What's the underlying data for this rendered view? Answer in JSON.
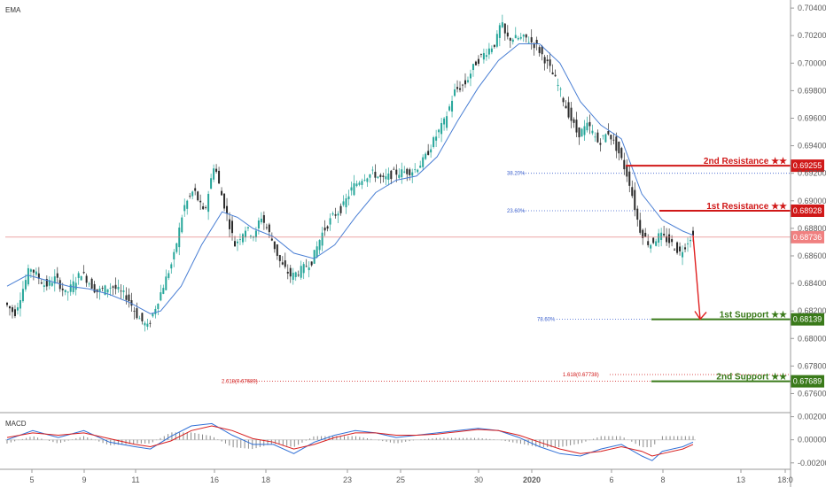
{
  "chart_data": [
    {
      "type": "candlestick",
      "panel_label": "EMA",
      "y_ticks": [
        "0.70400",
        "0.70200",
        "0.70000",
        "0.69800",
        "0.69600",
        "0.69400",
        "0.69200",
        "0.69000",
        "0.68800",
        "0.68600",
        "0.68400",
        "0.68200",
        "0.68000",
        "0.67800",
        "0.67600"
      ],
      "x_ticks": [
        "5",
        "9",
        "11",
        "16",
        "18",
        "23",
        "25",
        "30",
        "2020",
        "6",
        "8",
        "13",
        "18:0"
      ],
      "ylim": [
        0.675,
        0.7042
      ],
      "current_price": 0.68736,
      "price_path": [
        [
          0,
          0.6826
        ],
        [
          2,
          0.6818
        ],
        [
          5,
          0.6852
        ],
        [
          8,
          0.6838
        ],
        [
          10,
          0.6844
        ],
        [
          12,
          0.6832
        ],
        [
          15,
          0.6848
        ],
        [
          18,
          0.6834
        ],
        [
          21,
          0.6838
        ],
        [
          24,
          0.683
        ],
        [
          26,
          0.6816
        ],
        [
          28,
          0.6808
        ],
        [
          30,
          0.6828
        ],
        [
          33,
          0.6858
        ],
        [
          35,
          0.6895
        ],
        [
          37,
          0.6908
        ],
        [
          39,
          0.689
        ],
        [
          41,
          0.6928
        ],
        [
          42,
          0.691
        ],
        [
          45,
          0.6868
        ],
        [
          47,
          0.688
        ],
        [
          49,
          0.6874
        ],
        [
          50,
          0.689
        ],
        [
          52,
          0.6874
        ],
        [
          54,
          0.6854
        ],
        [
          56,
          0.6845
        ],
        [
          58,
          0.685
        ],
        [
          60,
          0.6856
        ],
        [
          62,
          0.6876
        ],
        [
          64,
          0.6888
        ],
        [
          66,
          0.6895
        ],
        [
          68,
          0.691
        ],
        [
          70,
          0.6917
        ],
        [
          72,
          0.692
        ],
        [
          74,
          0.6915
        ],
        [
          76,
          0.692
        ],
        [
          80,
          0.6922
        ],
        [
          82,
          0.693
        ],
        [
          84,
          0.6945
        ],
        [
          86,
          0.6958
        ],
        [
          88,
          0.698
        ],
        [
          90,
          0.6985
        ],
        [
          92,
          0.7
        ],
        [
          94,
          0.7008
        ],
        [
          96,
          0.7015
        ],
        [
          97,
          0.703
        ],
        [
          98,
          0.7018
        ],
        [
          102,
          0.7018
        ],
        [
          104,
          0.7012
        ],
        [
          106,
          0.7
        ],
        [
          108,
          0.6985
        ],
        [
          110,
          0.6965
        ],
        [
          112,
          0.6948
        ],
        [
          114,
          0.6955
        ],
        [
          116,
          0.6942
        ],
        [
          118,
          0.695
        ],
        [
          120,
          0.6935
        ],
        [
          122,
          0.6915
        ],
        [
          124,
          0.688
        ],
        [
          126,
          0.6868
        ],
        [
          128,
          0.6875
        ],
        [
          130,
          0.687
        ],
        [
          132,
          0.6862
        ],
        [
          134,
          0.6874
        ]
      ],
      "ema_path": [
        [
          0,
          0.6838
        ],
        [
          4,
          0.6846
        ],
        [
          8,
          0.6842
        ],
        [
          12,
          0.6838
        ],
        [
          16,
          0.6836
        ],
        [
          20,
          0.6832
        ],
        [
          24,
          0.6826
        ],
        [
          28,
          0.6818
        ],
        [
          30,
          0.682
        ],
        [
          34,
          0.6838
        ],
        [
          38,
          0.6868
        ],
        [
          42,
          0.6892
        ],
        [
          45,
          0.6888
        ],
        [
          48,
          0.688
        ],
        [
          52,
          0.6874
        ],
        [
          56,
          0.6862
        ],
        [
          60,
          0.6858
        ],
        [
          64,
          0.6868
        ],
        [
          68,
          0.6888
        ],
        [
          72,
          0.6906
        ],
        [
          76,
          0.6915
        ],
        [
          80,
          0.6918
        ],
        [
          84,
          0.6932
        ],
        [
          88,
          0.6958
        ],
        [
          92,
          0.6982
        ],
        [
          96,
          0.7002
        ],
        [
          100,
          0.7014
        ],
        [
          104,
          0.7014
        ],
        [
          108,
          0.7
        ],
        [
          112,
          0.6972
        ],
        [
          116,
          0.6955
        ],
        [
          120,
          0.6945
        ],
        [
          124,
          0.6905
        ],
        [
          128,
          0.6886
        ],
        [
          132,
          0.6878
        ],
        [
          134,
          0.6875
        ]
      ],
      "levels": [
        {
          "label": "2nd Resistance ★★",
          "value": 0.69255,
          "tag": "0.69255",
          "color": "#d01818"
        },
        {
          "label": "1st Resistance ★★",
          "value": 0.68928,
          "tag": "0.68928",
          "color": "#d01818"
        },
        {
          "label": "1st Support ★★",
          "value": 0.68139,
          "tag": "0.68139",
          "color": "#3a7a1a"
        },
        {
          "label": "2nd Support ★★",
          "value": 0.67689,
          "tag": "0.67689",
          "color": "#3a7a1a"
        }
      ],
      "fib_levels": [
        {
          "label": "38.20%",
          "value": 0.692,
          "color": "#3a5fcd"
        },
        {
          "label": "23.60%",
          "value": 0.68928,
          "color": "#3a5fcd"
        },
        {
          "label": "78.60%",
          "value": 0.68139,
          "color": "#3a5fcd"
        },
        {
          "label": "1.618(0.67738)",
          "value": 0.67738,
          "color": "#d01818"
        },
        {
          "label": "2.618(0.67689)",
          "value": 0.67689,
          "color": "#d01818"
        }
      ],
      "projection": {
        "from": [
          134,
          0.6875
        ],
        "to": [
          136,
          0.6814
        ]
      }
    },
    {
      "type": "line",
      "panel_label": "MACD",
      "y_ticks": [
        "0.00200",
        "0.00000",
        "-0.00200"
      ],
      "ylim": [
        -0.0024,
        0.0022
      ],
      "macd": [
        [
          0,
          0.0
        ],
        [
          5,
          0.0008
        ],
        [
          10,
          0.0002
        ],
        [
          15,
          0.0008
        ],
        [
          20,
          -0.0002
        ],
        [
          25,
          -0.0006
        ],
        [
          28,
          -0.0008
        ],
        [
          32,
          0.0003
        ],
        [
          36,
          0.0012
        ],
        [
          40,
          0.0014
        ],
        [
          44,
          0.0004
        ],
        [
          48,
          -0.0004
        ],
        [
          52,
          -0.0004
        ],
        [
          56,
          -0.0012
        ],
        [
          60,
          -0.0002
        ],
        [
          64,
          0.0004
        ],
        [
          68,
          0.0008
        ],
        [
          72,
          0.0006
        ],
        [
          76,
          0.0002
        ],
        [
          80,
          0.0004
        ],
        [
          84,
          0.0006
        ],
        [
          88,
          0.0008
        ],
        [
          92,
          0.001
        ],
        [
          96,
          0.0008
        ],
        [
          100,
          0.0002
        ],
        [
          104,
          -0.0006
        ],
        [
          108,
          -0.0012
        ],
        [
          112,
          -0.0014
        ],
        [
          116,
          -0.0008
        ],
        [
          120,
          -0.0004
        ],
        [
          124,
          -0.0014
        ],
        [
          126,
          -0.0018
        ],
        [
          128,
          -0.001
        ],
        [
          132,
          -0.0006
        ],
        [
          134,
          -0.0002
        ]
      ],
      "signal": [
        [
          0,
          0.0002
        ],
        [
          5,
          0.0006
        ],
        [
          10,
          0.0004
        ],
        [
          15,
          0.0006
        ],
        [
          20,
          0.0001
        ],
        [
          25,
          -0.0004
        ],
        [
          28,
          -0.0006
        ],
        [
          32,
          -0.0001
        ],
        [
          36,
          0.0008
        ],
        [
          40,
          0.0012
        ],
        [
          44,
          0.0008
        ],
        [
          48,
          0.0001
        ],
        [
          52,
          -0.0002
        ],
        [
          56,
          -0.0008
        ],
        [
          60,
          -0.0004
        ],
        [
          64,
          0.0002
        ],
        [
          68,
          0.0006
        ],
        [
          72,
          0.0006
        ],
        [
          76,
          0.0004
        ],
        [
          80,
          0.0004
        ],
        [
          84,
          0.0005
        ],
        [
          88,
          0.0007
        ],
        [
          92,
          0.0009
        ],
        [
          96,
          0.0008
        ],
        [
          100,
          0.0004
        ],
        [
          104,
          -0.0002
        ],
        [
          108,
          -0.0008
        ],
        [
          112,
          -0.0012
        ],
        [
          116,
          -0.001
        ],
        [
          120,
          -0.0006
        ],
        [
          124,
          -0.001
        ],
        [
          126,
          -0.0014
        ],
        [
          128,
          -0.0012
        ],
        [
          132,
          -0.0008
        ],
        [
          134,
          -0.0004
        ]
      ]
    }
  ]
}
